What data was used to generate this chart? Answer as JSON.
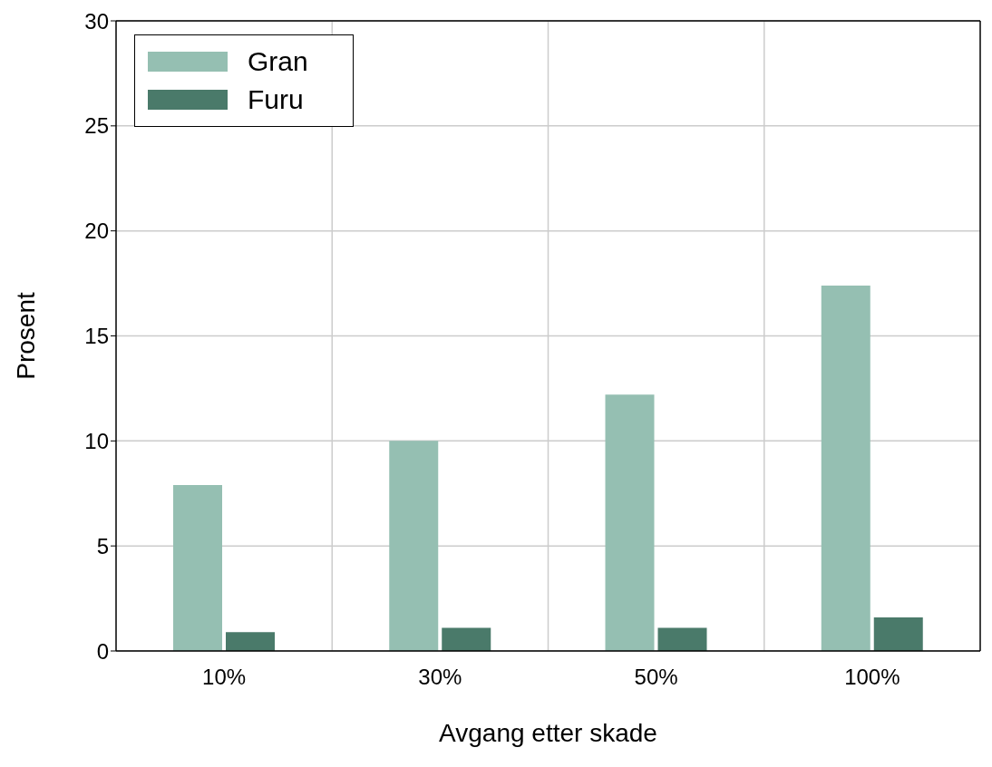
{
  "chart_data": {
    "type": "bar",
    "xlabel": "Avgang etter skade",
    "ylabel": "Prosent",
    "categories": [
      "10%",
      "30%",
      "50%",
      "100%"
    ],
    "series": [
      {
        "name": "Gran",
        "color": "#95bfb2",
        "values": [
          7.9,
          10.0,
          12.2,
          17.4
        ]
      },
      {
        "name": "Furu",
        "color": "#4a7a6a",
        "values": [
          0.9,
          1.1,
          1.1,
          1.6
        ]
      }
    ],
    "ylim": [
      0,
      30
    ],
    "yticks": [
      0,
      5,
      10,
      15,
      20,
      25,
      30
    ],
    "grid": true,
    "legend": "top left"
  }
}
